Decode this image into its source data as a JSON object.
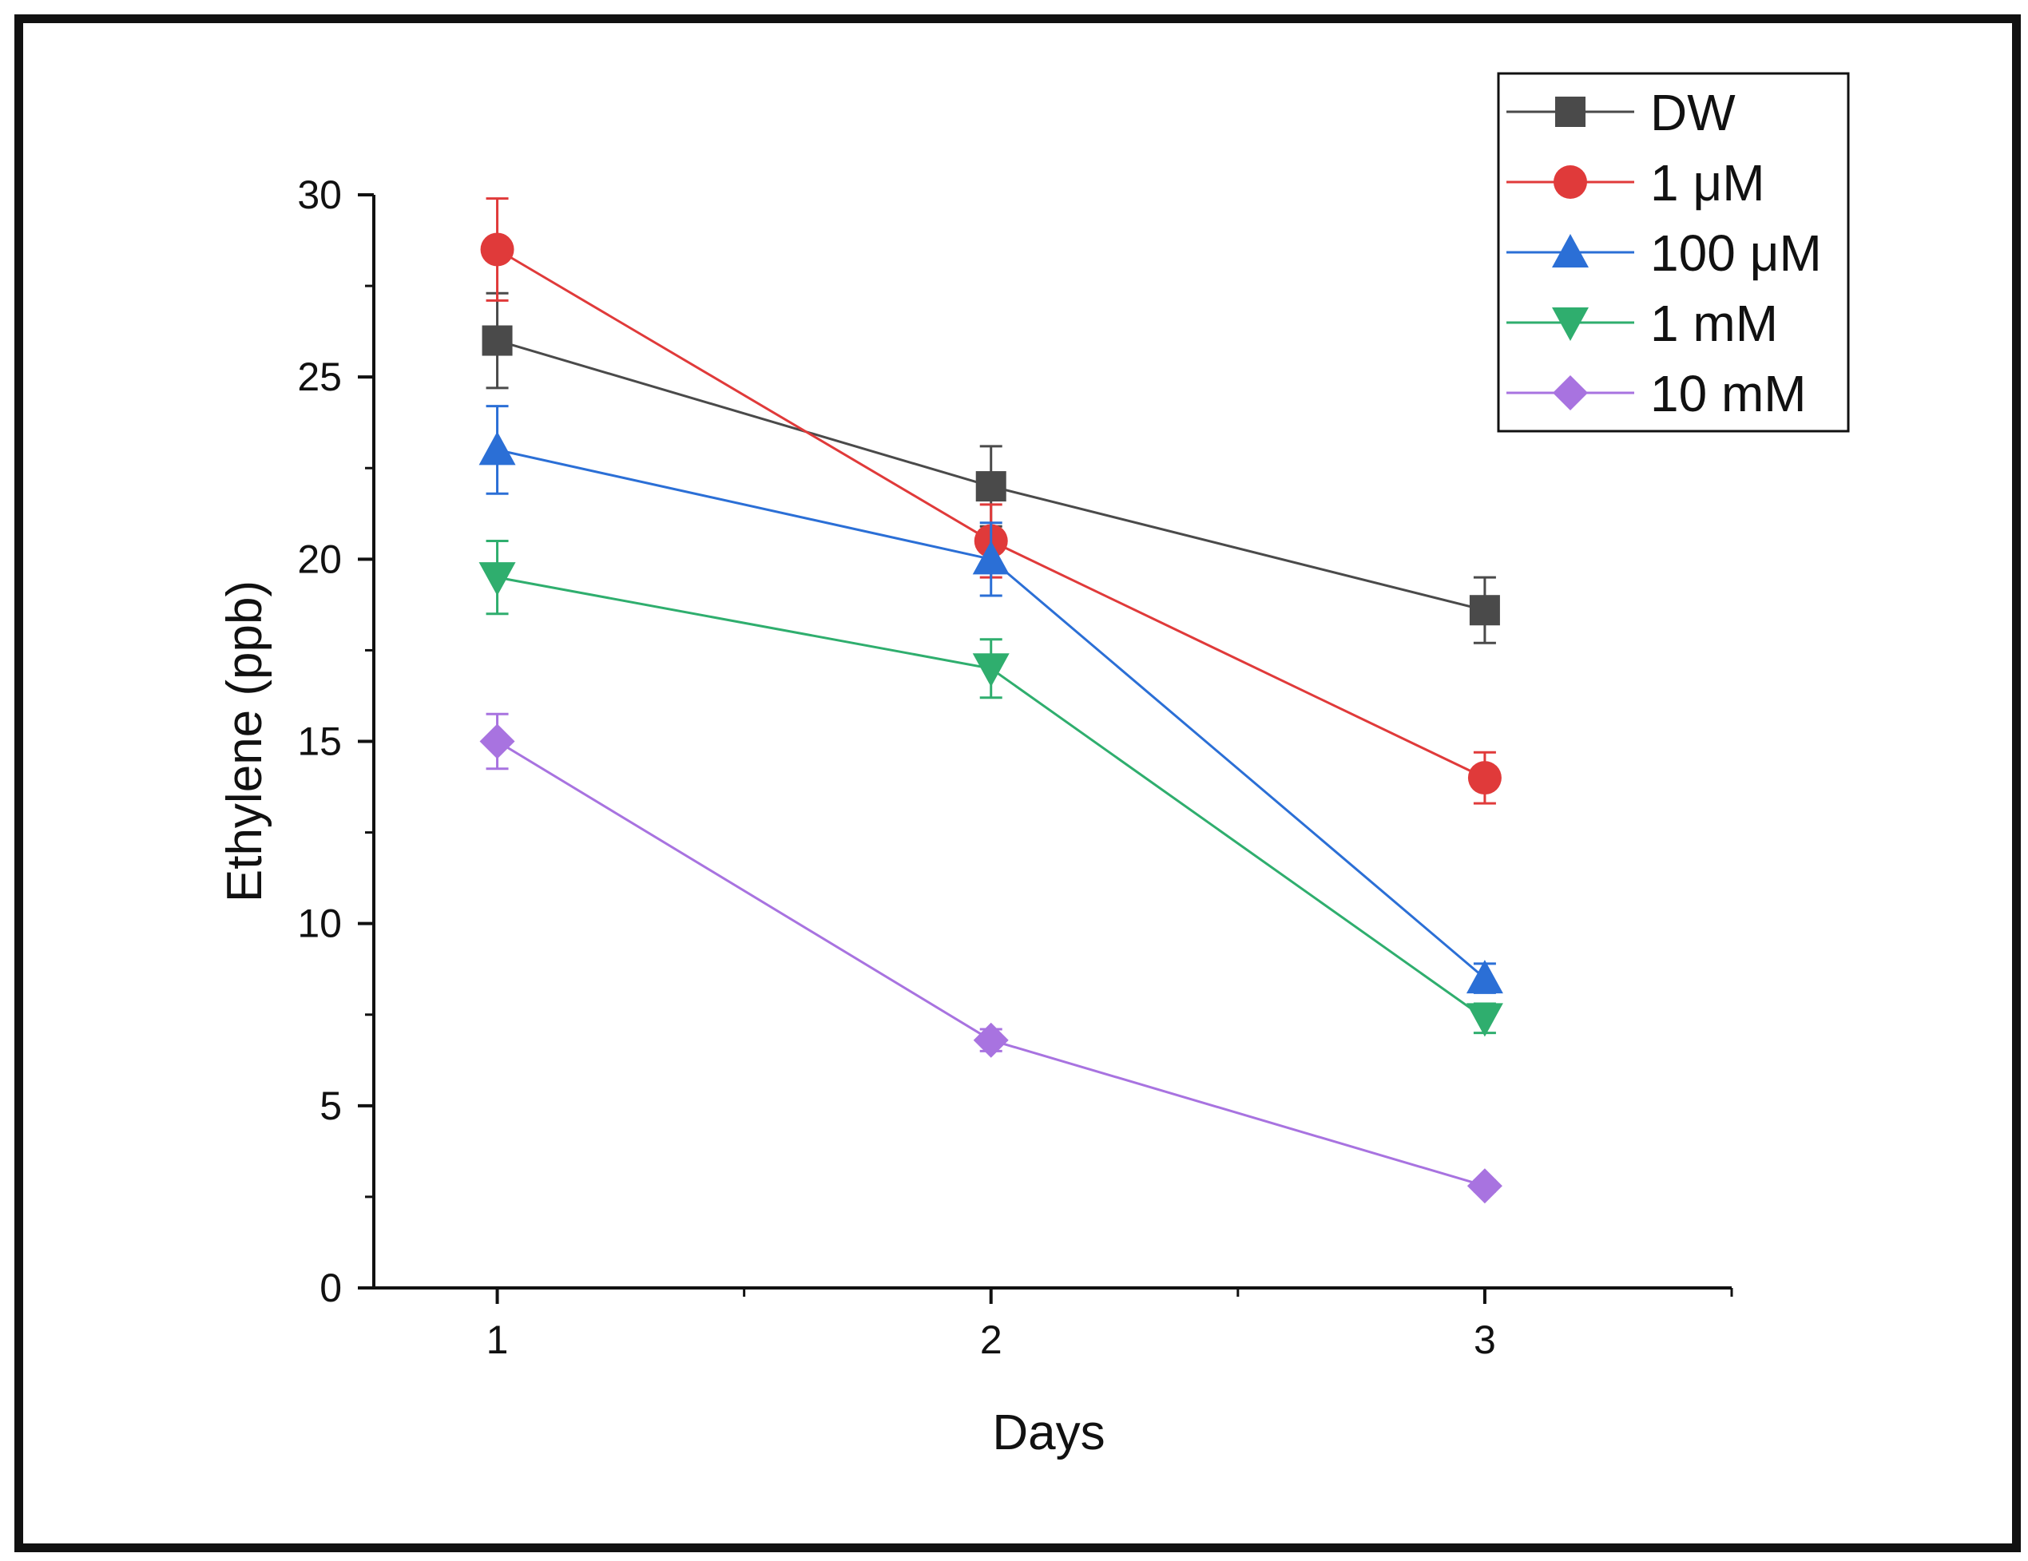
{
  "chart_data": {
    "type": "line",
    "title": "",
    "xlabel": "Days",
    "ylabel": "Ethylene (ppb)",
    "x": [
      1,
      2,
      3
    ],
    "x_tick_labels": [
      "1",
      "2",
      "3"
    ],
    "xlim": [
      0.75,
      3.5
    ],
    "ylim": [
      0,
      30
    ],
    "y_ticks": [
      0,
      5,
      10,
      15,
      20,
      25,
      30
    ],
    "y_tick_labels": [
      "0",
      "5",
      "10",
      "15",
      "20",
      "25",
      "30"
    ],
    "grid": false,
    "legend_position": "top-right",
    "series": [
      {
        "name": "DW",
        "marker": "square",
        "color": "#4a4a4a",
        "values": [
          26.0,
          22.0,
          18.6
        ],
        "errors": [
          1.3,
          1.1,
          0.9
        ]
      },
      {
        "name": "1 μM",
        "marker": "circle",
        "color": "#e03a3a",
        "values": [
          28.5,
          20.5,
          14.0
        ],
        "errors": [
          1.4,
          1.0,
          0.7
        ]
      },
      {
        "name": "100 μM",
        "marker": "triangle-up",
        "color": "#2b6fd6",
        "values": [
          23.0,
          20.0,
          8.5
        ],
        "errors": [
          1.2,
          1.0,
          0.4
        ]
      },
      {
        "name": "1 mM",
        "marker": "triangle-down",
        "color": "#2fae6e",
        "values": [
          19.5,
          17.0,
          7.4
        ],
        "errors": [
          1.0,
          0.8,
          0.4
        ]
      },
      {
        "name": "10 mM",
        "marker": "diamond",
        "color": "#a873e0",
        "values": [
          15.0,
          6.8,
          2.8
        ],
        "errors": [
          0.75,
          0.3,
          0.15
        ]
      }
    ]
  }
}
